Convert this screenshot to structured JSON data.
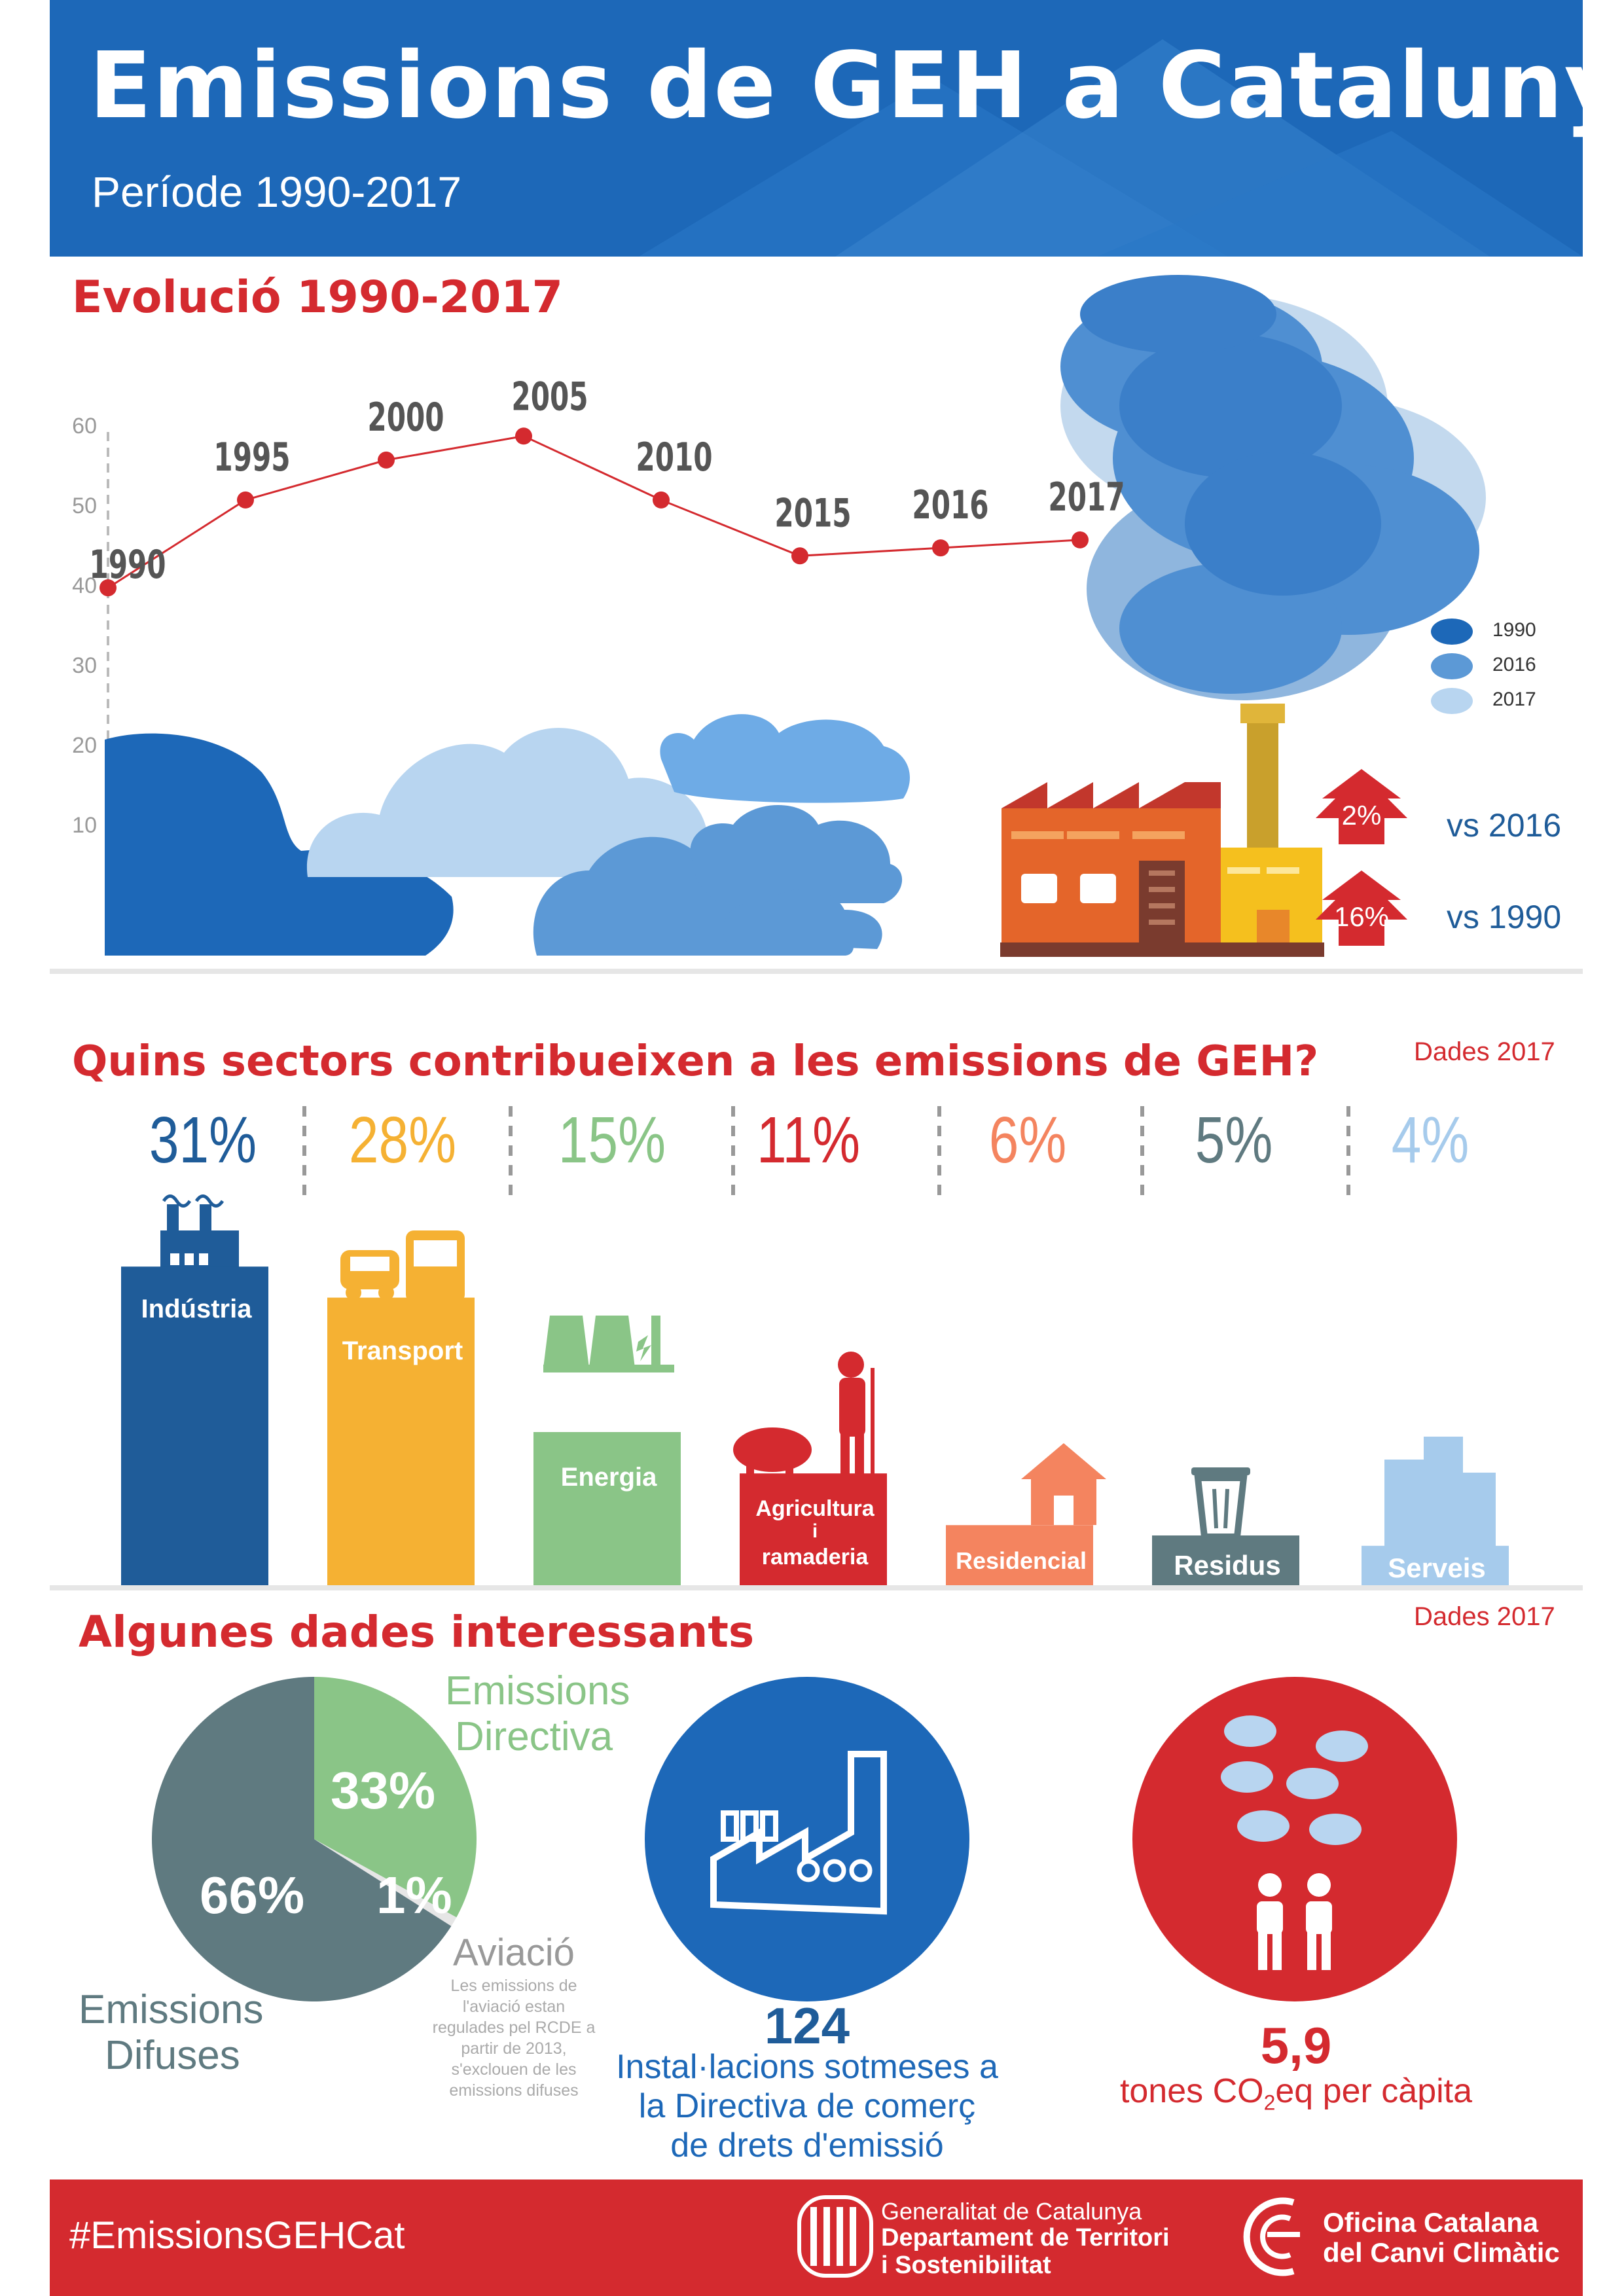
{
  "header": {
    "title": "Emissions de GEH a Catalunya",
    "subtitle": "Període 1990-2017"
  },
  "evolution": {
    "section_title": "Evolució 1990-2017",
    "legend": [
      "1990",
      "2016",
      "2017"
    ],
    "badges": [
      {
        "value": "2%",
        "label": "vs 2016"
      },
      {
        "value": "16%",
        "label": "vs 1990"
      }
    ]
  },
  "chart_data": [
    {
      "type": "line",
      "x": [
        "1990",
        "1995",
        "2000",
        "2005",
        "2010",
        "2015",
        "2016",
        "2017"
      ],
      "values": [
        39.5,
        50.5,
        55.5,
        58.5,
        50.5,
        43.5,
        44.5,
        45.5
      ],
      "yticks": [
        "60",
        "50",
        "40",
        "30",
        "20",
        "10"
      ],
      "ylim": [
        0,
        60
      ],
      "color": "#d42a2f"
    },
    {
      "type": "bar",
      "categories": [
        "Indústria",
        "Transport",
        "Energia",
        "Agricultura i ramaderia",
        "Residencial",
        "Residus",
        "Serveis"
      ],
      "values": [
        31,
        28,
        15,
        11,
        6,
        5,
        4
      ],
      "labels": [
        "31%",
        "28%",
        "15%",
        "11%",
        "6%",
        "5%",
        "4%"
      ],
      "colors": [
        "#1f5c99",
        "#f5b133",
        "#8ac587",
        "#d42a2f",
        "#f4845f",
        "#5f7a80",
        "#a6cbec"
      ]
    },
    {
      "type": "pie",
      "labels": [
        "Emissions Directiva",
        "Aviació",
        "Emissions Difuses"
      ],
      "values": [
        33,
        1,
        66
      ],
      "value_labels": [
        "33%",
        "1%",
        "66%"
      ],
      "colors": [
        "#8ac587",
        "#e6e6e6",
        "#5f7a80"
      ]
    }
  ],
  "sectors": {
    "section_title": "Quins sectors contribueixen a les emissions de GEH?",
    "dades": "Dades 2017",
    "bar_labels": [
      "Indústria",
      "Transport",
      "Energia",
      "Agricultura",
      "i",
      "ramaderia",
      "Residencial",
      "Residus",
      "Serveis"
    ]
  },
  "facts": {
    "section_title": "Algunes dades interessants",
    "dades": "Dades 2017",
    "pie_title_1": "Emissions",
    "pie_title_2": "Directiva",
    "pie_difuses_1": "Emissions",
    "pie_difuses_2": "Difuses",
    "aviacio": "Aviació",
    "aviacio_note": [
      "Les emissions de",
      "l'aviació estan",
      "regulades pel RCDE a",
      "partir de 2013,",
      "s'exclouen de les",
      "emissions difuses"
    ],
    "installations_number": "124",
    "installations_text": [
      "Instal·lacions sotmeses a",
      "la Directiva de comerç",
      "de drets d'emissió"
    ],
    "per_capita_number": "5,9",
    "per_capita_text_a": "tones CO",
    "per_capita_sub": "2",
    "per_capita_text_b": "eq per càpita"
  },
  "footer": {
    "hashtag": "#EmissionsGEHCat",
    "gov_line1": "Generalitat de Catalunya",
    "gov_line2": "Departament de Territori",
    "gov_line3": "i Sostenibilitat",
    "occ_line1": "Oficina Catalana",
    "occ_line2": "del Canvi Climàtic"
  },
  "colors": {
    "header_blue": "#1d68b8",
    "accent_red": "#d42a2f",
    "dark_blue": "#1f5c99"
  }
}
